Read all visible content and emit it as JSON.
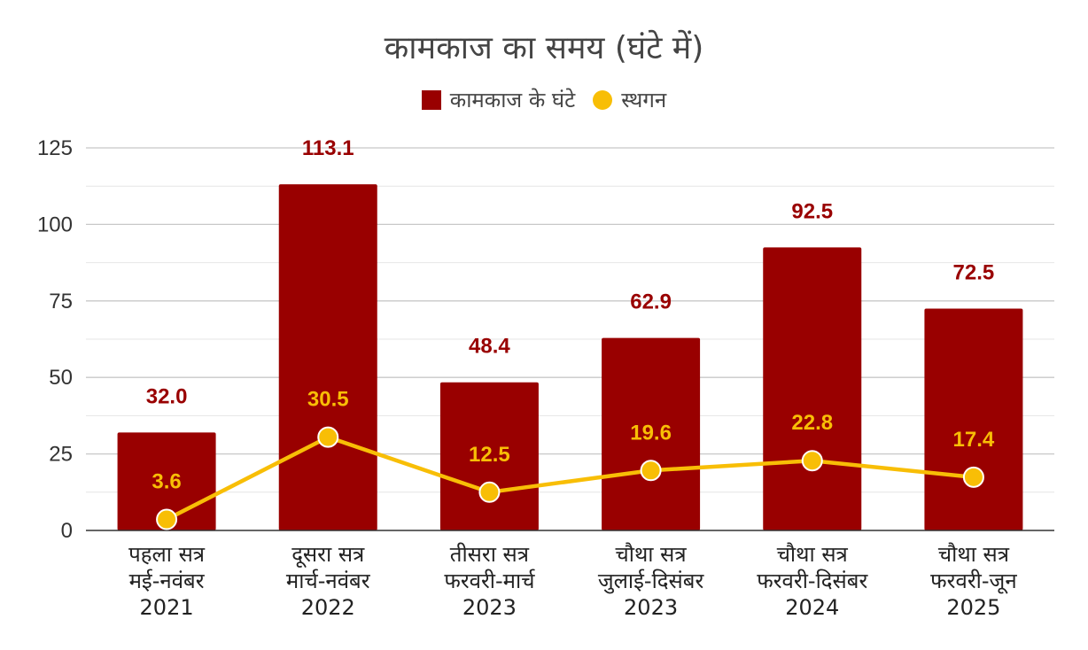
{
  "chart_data": {
    "type": "bar",
    "title": "कामकाज का समय (घंटे में)",
    "legend_position": "top",
    "categories": [
      [
        "पहला सत्र",
        "मई-नवंबर",
        "2021"
      ],
      [
        "दूसरा सत्र",
        "मार्च-नवंबर",
        "2022"
      ],
      [
        "तीसरा सत्र",
        "फरवरी-मार्च",
        "2023"
      ],
      [
        "चौथा सत्र",
        "जुलाई-दिसंबर",
        "2023"
      ],
      [
        "चौथा सत्र",
        "फरवरी-दिसंबर",
        "2024"
      ],
      [
        "चौथा सत्र",
        "फरवरी-जून",
        "2025"
      ]
    ],
    "series": [
      {
        "name": "कामकाज के घंटे",
        "type": "bar",
        "color": "#990000",
        "values": [
          32.0,
          113.1,
          48.4,
          62.9,
          92.5,
          72.5
        ],
        "labels": [
          "32.0",
          "113.1",
          "48.4",
          "62.9",
          "92.5",
          "72.5"
        ]
      },
      {
        "name": "स्थगन",
        "type": "line",
        "color": "#f8be06",
        "values": [
          3.6,
          30.5,
          12.5,
          19.6,
          22.8,
          17.4
        ],
        "labels": [
          "3.6",
          "30.5",
          "12.5",
          "19.6",
          "22.8",
          "17.4"
        ]
      }
    ],
    "ylim": [
      0,
      125
    ],
    "yticks": [
      "0",
      "25",
      "50",
      "75",
      "100",
      "125"
    ],
    "grid": true
  }
}
